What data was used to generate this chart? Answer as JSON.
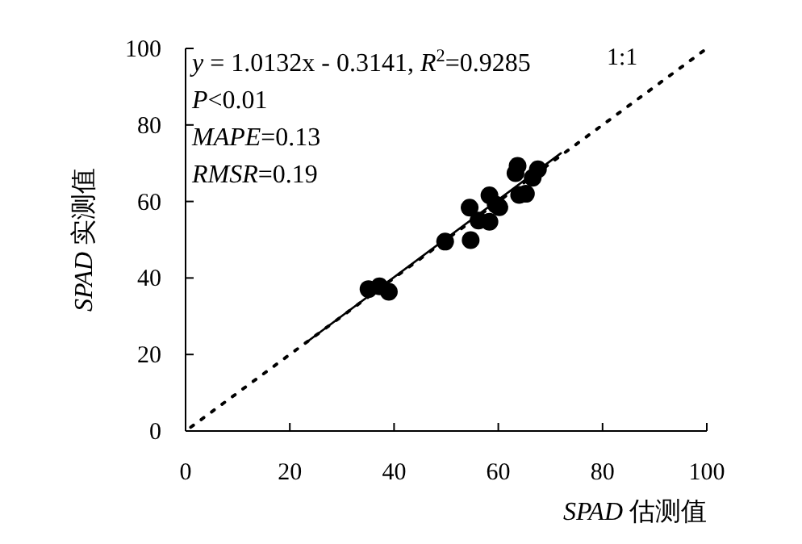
{
  "chart_data": {
    "type": "scatter",
    "xlabel": "*SPAD* 估测值",
    "ylabel": "*SPAD* 实测值",
    "xlim": [
      0,
      100
    ],
    "ylim": [
      0,
      100
    ],
    "xticks": [
      0,
      20,
      40,
      60,
      80,
      100
    ],
    "yticks": [
      0,
      20,
      40,
      60,
      80,
      100
    ],
    "annotations": [
      "*y* = 1.0132x - 0.3141, *R*$^{2}$=0.9285",
      "*P*<0.01",
      "*MAPE*=0.13",
      "*RMSR*=0.19"
    ],
    "series": [
      {
        "type": "scatter",
        "color": "#000000",
        "marker": "circle",
        "x": [
          35.1,
          37.2,
          39.0,
          49.8,
          54.7,
          54.5,
          56.2,
          58.3,
          58.3,
          60.2,
          59.5,
          63.7,
          63.3,
          64.0,
          65.3,
          67.6,
          66.6
        ],
        "values": [
          37.1,
          37.8,
          36.4,
          49.5,
          49.9,
          58.4,
          55.0,
          54.7,
          61.6,
          58.5,
          59.2,
          69.3,
          67.4,
          61.7,
          62.0,
          68.4,
          66.2
        ]
      },
      {
        "type": "line",
        "color": "#000000",
        "line_style": "solid",
        "x": [
          23,
          72
        ],
        "values": [
          23,
          72.6
        ]
      },
      {
        "type": "line",
        "name": "1:1",
        "color": "#000000",
        "line_style": "dotted",
        "x": [
          1,
          100
        ],
        "values": [
          1,
          100
        ]
      }
    ]
  }
}
